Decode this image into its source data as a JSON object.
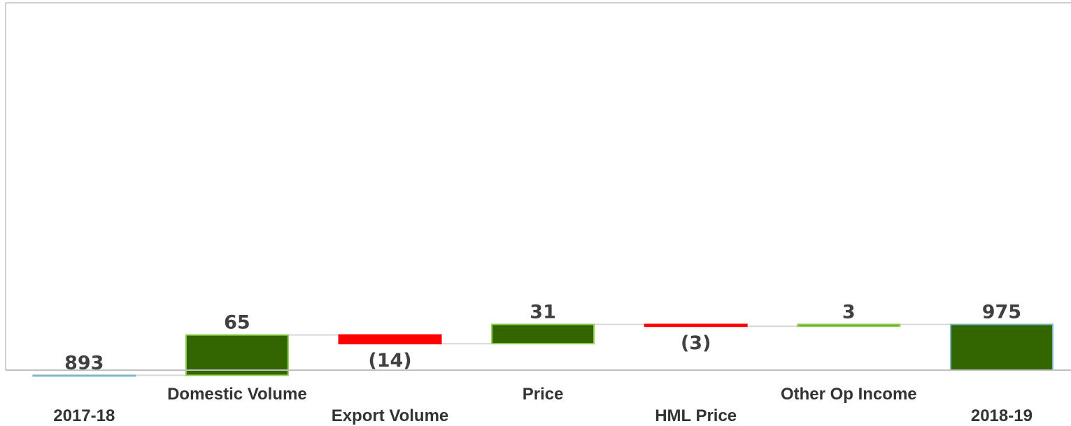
{
  "chart_data": {
    "type": "bar",
    "subtype": "waterfall",
    "categories": [
      "2017-18",
      "Domestic Volume",
      "Export Volume",
      "Price",
      "HML Price",
      "Other Op Income",
      "2018-19"
    ],
    "steps": [
      {
        "category": "2017-18",
        "kind": "total",
        "value": 893,
        "label": "893"
      },
      {
        "category": "Domestic Volume",
        "kind": "delta",
        "value": 65,
        "label": "65"
      },
      {
        "category": "Export Volume",
        "kind": "delta",
        "value": -14,
        "label": "(14)"
      },
      {
        "category": "Price",
        "kind": "delta",
        "value": 31,
        "label": "31"
      },
      {
        "category": "HML Price",
        "kind": "delta",
        "value": -3,
        "label": "(3)"
      },
      {
        "category": "Other Op Income",
        "kind": "delta",
        "value": 3,
        "label": "3"
      },
      {
        "category": "2018-19",
        "kind": "total",
        "value": 975,
        "label": "975"
      }
    ],
    "ylim": [
      875,
      980
    ],
    "title": "",
    "xlabel": "",
    "ylabel": "",
    "grid": false,
    "colors": {
      "increase": "#336600",
      "decrease": "#ff0000",
      "total": "#336600",
      "increase_border": "#92d050",
      "total_border": "#7fb8c8",
      "connector": "#d9d9d9",
      "axis": "#bfbfbf"
    }
  }
}
